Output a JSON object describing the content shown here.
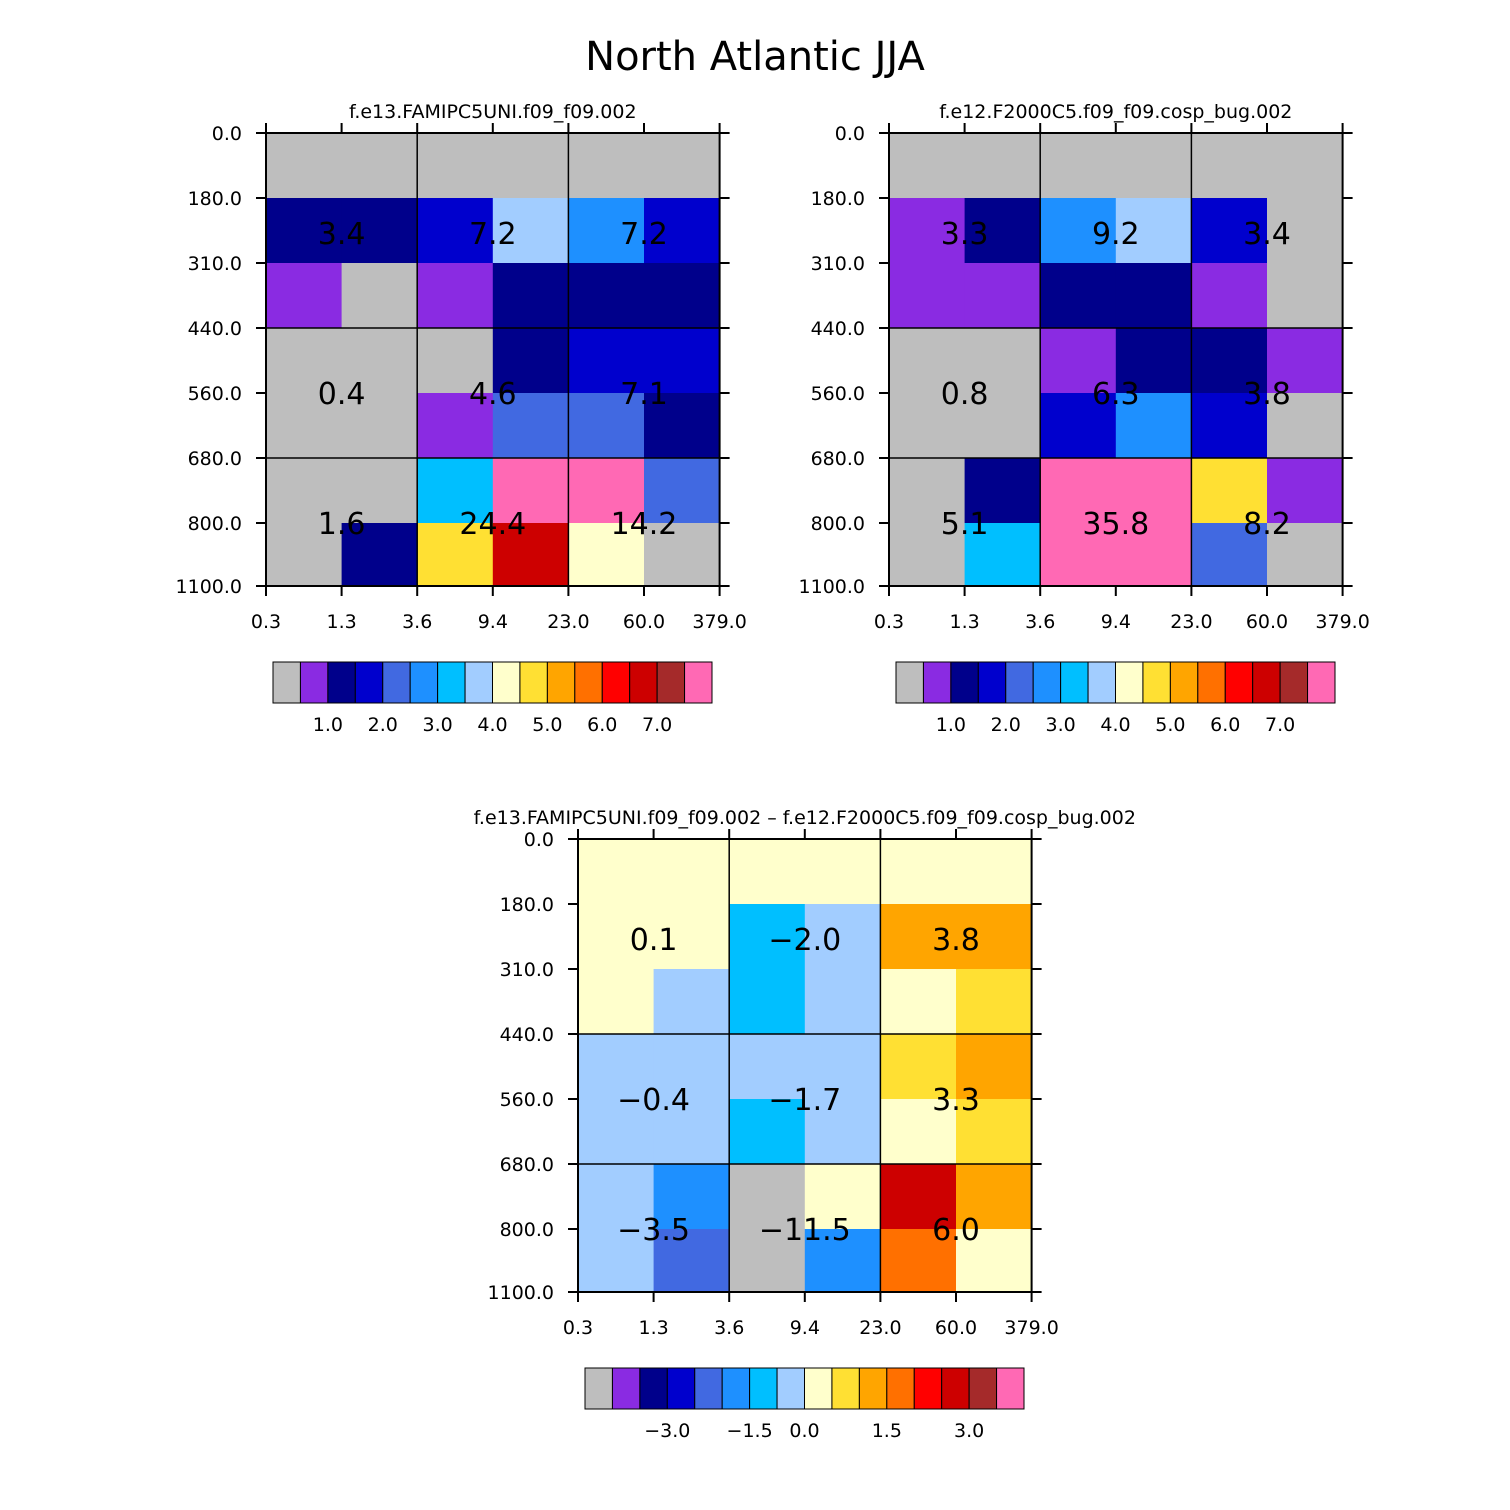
{
  "title": "North Atlantic JJA",
  "chart_data": [
    {
      "type": "heatmap",
      "title": "f.e13.FAMIPC5UNI.f09_f09.002",
      "x_ticks": [
        "0.3",
        "1.3",
        "3.6",
        "9.4",
        "23.0",
        "60.0",
        "379.0"
      ],
      "y_ticks": [
        "0.0",
        "180.0",
        "310.0",
        "440.0",
        "560.0",
        "680.0",
        "800.0",
        "1100.0"
      ],
      "cells": [
        [
          "gray",
          "gray",
          "gray",
          "gray",
          "gray",
          "gray"
        ],
        [
          "dnavy",
          "dnavy",
          "blue",
          "lblue",
          "dodger",
          "blue"
        ],
        [
          "violet",
          "gray",
          "violet",
          "dnavy",
          "dnavy",
          "dnavy"
        ],
        [
          "gray",
          "gray",
          "gray",
          "dnavy",
          "blue",
          "blue"
        ],
        [
          "gray",
          "gray",
          "violet",
          "royal",
          "royal",
          "dnavy"
        ],
        [
          "gray",
          "gray",
          "cyan",
          "pink",
          "pink",
          "royal"
        ],
        [
          "gray",
          "dnavy",
          "yellow",
          "dred",
          "cream",
          "gray"
        ]
      ],
      "block_labels": [
        [
          "3.4",
          "7.2",
          "7.2"
        ],
        [
          "0.4",
          "4.6",
          "7.1"
        ],
        [
          "1.6",
          "24.4",
          "14.2"
        ]
      ],
      "colorbar": {
        "labels": [
          "1.0",
          "2.0",
          "3.0",
          "4.0",
          "5.0",
          "6.0",
          "7.0"
        ]
      }
    },
    {
      "type": "heatmap",
      "title": "f.e12.F2000C5.f09_f09.cosp_bug.002",
      "x_ticks": [
        "0.3",
        "1.3",
        "3.6",
        "9.4",
        "23.0",
        "60.0",
        "379.0"
      ],
      "y_ticks": [
        "0.0",
        "180.0",
        "310.0",
        "440.0",
        "560.0",
        "680.0",
        "800.0",
        "1100.0"
      ],
      "cells": [
        [
          "gray",
          "gray",
          "gray",
          "gray",
          "gray",
          "gray"
        ],
        [
          "violet",
          "dnavy",
          "dodger",
          "lblue",
          "blue",
          "gray"
        ],
        [
          "violet",
          "violet",
          "dnavy",
          "dnavy",
          "violet",
          "gray"
        ],
        [
          "gray",
          "gray",
          "violet",
          "dnavy",
          "dnavy",
          "violet"
        ],
        [
          "gray",
          "gray",
          "blue",
          "dodger",
          "blue",
          "gray"
        ],
        [
          "gray",
          "dnavy",
          "pink",
          "pink",
          "yellow",
          "violet"
        ],
        [
          "gray",
          "cyan",
          "pink",
          "pink",
          "royal",
          "gray"
        ]
      ],
      "block_labels": [
        [
          "3.3",
          "9.2",
          "3.4"
        ],
        [
          "0.8",
          "6.3",
          "3.8"
        ],
        [
          "5.1",
          "35.8",
          "8.2"
        ]
      ],
      "colorbar": {
        "labels": [
          "1.0",
          "2.0",
          "3.0",
          "4.0",
          "5.0",
          "6.0",
          "7.0"
        ]
      }
    },
    {
      "type": "heatmap",
      "title": "f.e13.FAMIPC5UNI.f09_f09.002 – f.e12.F2000C5.f09_f09.cosp_bug.002",
      "x_ticks": [
        "0.3",
        "1.3",
        "3.6",
        "9.4",
        "23.0",
        "60.0",
        "379.0"
      ],
      "y_ticks": [
        "0.0",
        "180.0",
        "310.0",
        "440.0",
        "560.0",
        "680.0",
        "800.0",
        "1100.0"
      ],
      "cells": [
        [
          "cream",
          "cream",
          "cream",
          "cream",
          "cream",
          "cream"
        ],
        [
          "cream",
          "cream",
          "cyan",
          "lblue",
          "orange",
          "orange"
        ],
        [
          "cream",
          "lblue",
          "cyan",
          "lblue",
          "cream",
          "yellow"
        ],
        [
          "lblue",
          "lblue",
          "lblue",
          "lblue",
          "yellow",
          "orange"
        ],
        [
          "lblue",
          "lblue",
          "cyan",
          "lblue",
          "cream",
          "yellow"
        ],
        [
          "lblue",
          "dodger",
          "gray",
          "cream",
          "dred",
          "orange"
        ],
        [
          "lblue",
          "royal",
          "gray",
          "dodger",
          "dorange",
          "cream"
        ]
      ],
      "block_labels": [
        [
          "0.1",
          "−2.0",
          "3.8"
        ],
        [
          "−0.4",
          "−1.7",
          "3.3"
        ],
        [
          "−3.5",
          "−11.5",
          "6.0"
        ]
      ],
      "colorbar": {
        "labels": [
          "−3.0",
          "−1.5",
          "0.0",
          "1.5",
          "3.0"
        ]
      }
    }
  ],
  "colors": {
    "gray": "#bebebe",
    "violet": "#8a2be2",
    "dnavy": "#00008b",
    "blue": "#0000cd",
    "royal": "#4169e1",
    "dodger": "#1e90ff",
    "cyan": "#00bfff",
    "lblue": "#a2cdff",
    "cream": "#ffffcc",
    "yellow": "#ffe033",
    "orange": "#ffa500",
    "dorange": "#ff7000",
    "red": "#ff0000",
    "dred": "#cd0000",
    "brown": "#a52a2a",
    "pink": "#ff69b4"
  },
  "colorbar_sequence": [
    "gray",
    "violet",
    "dnavy",
    "blue",
    "royal",
    "dodger",
    "cyan",
    "lblue",
    "cream",
    "yellow",
    "orange",
    "dorange",
    "red",
    "dred",
    "brown",
    "pink"
  ]
}
